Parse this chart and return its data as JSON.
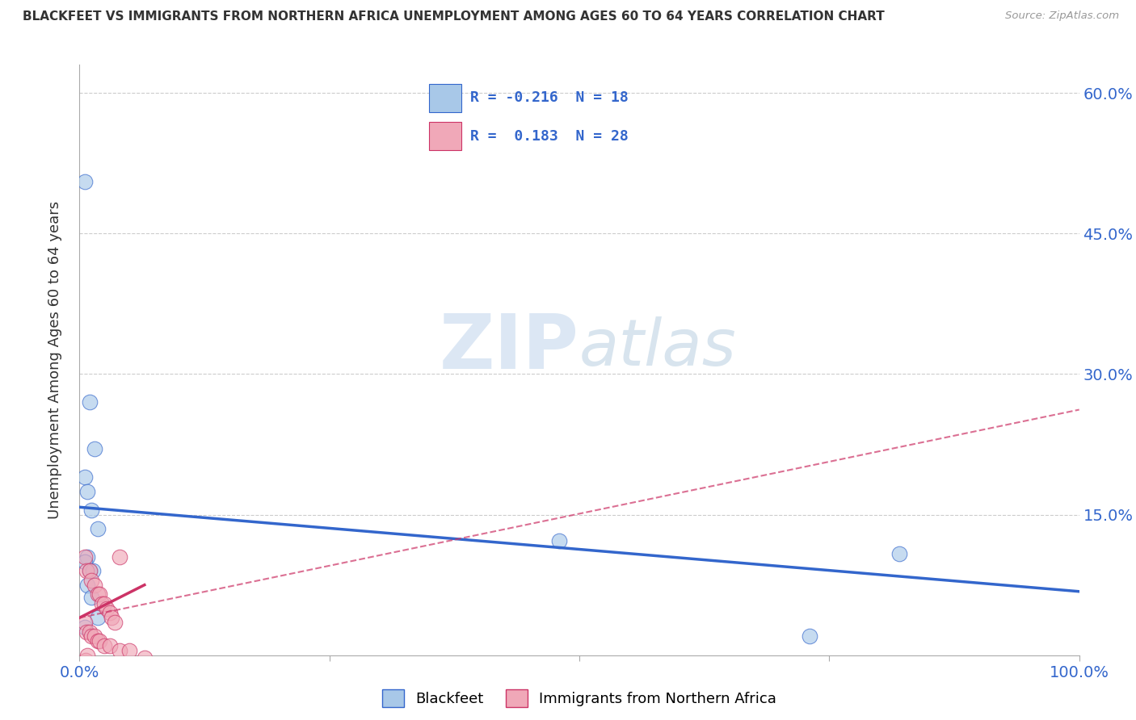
{
  "title": "BLACKFEET VS IMMIGRANTS FROM NORTHERN AFRICA UNEMPLOYMENT AMONG AGES 60 TO 64 YEARS CORRELATION CHART",
  "source": "Source: ZipAtlas.com",
  "ylabel": "Unemployment Among Ages 60 to 64 years",
  "xlim": [
    0.0,
    1.0
  ],
  "ylim": [
    0.0,
    0.63
  ],
  "xticks": [
    0.0,
    0.25,
    0.5,
    0.75,
    1.0
  ],
  "xticklabels": [
    "0.0%",
    "",
    "",
    "",
    "100.0%"
  ],
  "yticks": [
    0.0,
    0.15,
    0.3,
    0.45,
    0.6
  ],
  "yticklabels": [
    "",
    "15.0%",
    "30.0%",
    "45.0%",
    "60.0%"
  ],
  "blue_R": -0.216,
  "blue_N": 18,
  "pink_R": 0.183,
  "pink_N": 28,
  "blue_color": "#a8c8e8",
  "pink_color": "#f0a8b8",
  "blue_line_color": "#3366cc",
  "pink_line_color": "#cc3366",
  "watermark_zip": "ZIP",
  "watermark_atlas": "atlas",
  "blue_scatter_x": [
    0.005,
    0.01,
    0.015,
    0.005,
    0.008,
    0.012,
    0.018,
    0.008,
    0.005,
    0.01,
    0.013,
    0.008,
    0.012,
    0.018,
    0.005,
    0.48,
    0.82,
    0.73
  ],
  "blue_scatter_y": [
    0.505,
    0.27,
    0.22,
    0.19,
    0.175,
    0.155,
    0.135,
    0.105,
    0.1,
    0.09,
    0.09,
    0.075,
    0.062,
    0.04,
    0.03,
    0.122,
    0.108,
    0.02
  ],
  "pink_scatter_x": [
    0.005,
    0.007,
    0.01,
    0.012,
    0.015,
    0.018,
    0.02,
    0.022,
    0.025,
    0.027,
    0.03,
    0.032,
    0.035,
    0.04,
    0.005,
    0.007,
    0.01,
    0.012,
    0.015,
    0.018,
    0.02,
    0.025,
    0.03,
    0.04,
    0.05,
    0.065,
    0.006,
    0.008
  ],
  "pink_scatter_y": [
    0.105,
    0.09,
    0.09,
    0.08,
    0.075,
    0.065,
    0.065,
    0.055,
    0.055,
    0.05,
    0.045,
    0.04,
    0.035,
    0.105,
    0.035,
    0.025,
    0.025,
    0.02,
    0.02,
    0.015,
    0.015,
    0.01,
    0.01,
    0.005,
    0.005,
    -0.003,
    -0.005,
    0.0
  ],
  "blue_line_x0": 0.0,
  "blue_line_y0": 0.158,
  "blue_line_x1": 1.0,
  "blue_line_y1": 0.068,
  "pink_line_solid_x0": 0.0,
  "pink_line_solid_y0": 0.04,
  "pink_line_solid_x1": 0.065,
  "pink_line_solid_y1": 0.075,
  "pink_line_dash_x0": 0.0,
  "pink_line_dash_y0": 0.04,
  "pink_line_dash_x1": 1.0,
  "pink_line_dash_y1": 0.262
}
